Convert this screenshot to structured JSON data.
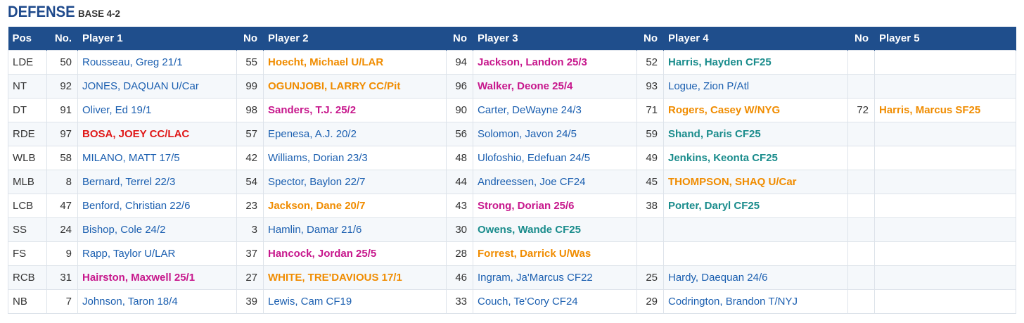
{
  "header": {
    "title": "DEFENSE",
    "subtitle": "BASE 4-2"
  },
  "columns": {
    "pos": "Pos",
    "no1": "No.",
    "player1": "Player 1",
    "no2": "No",
    "player2": "Player 2",
    "no3": "No",
    "player3": "Player 3",
    "no4": "No",
    "player4": "Player 4",
    "no5": "No",
    "player5": "Player 5"
  },
  "colors": {
    "header_bg": "#1f4e8c",
    "title": "#1f4a8c",
    "blue": "#1b5fb0",
    "orange": "#f08c00",
    "magenta": "#c7178c",
    "teal": "#1a8c8c",
    "red": "#e01818"
  },
  "rows": [
    {
      "pos": "LDE",
      "players": [
        {
          "no": "50",
          "name": "Rousseau, Greg 21/1",
          "color": "blue"
        },
        {
          "no": "55",
          "name": "Hoecht, Michael U/LAR",
          "color": "orange"
        },
        {
          "no": "94",
          "name": "Jackson, Landon 25/3",
          "color": "magenta"
        },
        {
          "no": "52",
          "name": "Harris, Hayden CF25",
          "color": "teal"
        },
        {
          "no": "",
          "name": "",
          "color": "blue"
        }
      ]
    },
    {
      "pos": "NT",
      "players": [
        {
          "no": "92",
          "name": "JONES, DAQUAN U/Car",
          "color": "blue"
        },
        {
          "no": "99",
          "name": "OGUNJOBI, LARRY CC/Pit",
          "color": "orange"
        },
        {
          "no": "96",
          "name": "Walker, Deone 25/4",
          "color": "magenta"
        },
        {
          "no": "93",
          "name": "Logue, Zion P/Atl",
          "color": "blue"
        },
        {
          "no": "",
          "name": "",
          "color": "blue"
        }
      ]
    },
    {
      "pos": "DT",
      "players": [
        {
          "no": "91",
          "name": "Oliver, Ed 19/1",
          "color": "blue"
        },
        {
          "no": "98",
          "name": "Sanders, T.J. 25/2",
          "color": "magenta"
        },
        {
          "no": "90",
          "name": "Carter, DeWayne 24/3",
          "color": "blue"
        },
        {
          "no": "71",
          "name": "Rogers, Casey W/NYG",
          "color": "orange"
        },
        {
          "no": "72",
          "name": "Harris, Marcus SF25",
          "color": "orange"
        }
      ]
    },
    {
      "pos": "RDE",
      "players": [
        {
          "no": "97",
          "name": "BOSA, JOEY CC/LAC",
          "color": "red"
        },
        {
          "no": "57",
          "name": "Epenesa, A.J. 20/2",
          "color": "blue"
        },
        {
          "no": "56",
          "name": "Solomon, Javon 24/5",
          "color": "blue"
        },
        {
          "no": "59",
          "name": "Shand, Paris CF25",
          "color": "teal"
        },
        {
          "no": "",
          "name": "",
          "color": "blue"
        }
      ]
    },
    {
      "pos": "WLB",
      "players": [
        {
          "no": "58",
          "name": "MILANO, MATT 17/5",
          "color": "blue"
        },
        {
          "no": "42",
          "name": "Williams, Dorian 23/3",
          "color": "blue"
        },
        {
          "no": "48",
          "name": "Ulofoshio, Edefuan 24/5",
          "color": "blue"
        },
        {
          "no": "49",
          "name": "Jenkins, Keonta CF25",
          "color": "teal"
        },
        {
          "no": "",
          "name": "",
          "color": "blue"
        }
      ]
    },
    {
      "pos": "MLB",
      "players": [
        {
          "no": "8",
          "name": "Bernard, Terrel 22/3",
          "color": "blue"
        },
        {
          "no": "54",
          "name": "Spector, Baylon 22/7",
          "color": "blue"
        },
        {
          "no": "44",
          "name": "Andreessen, Joe CF24",
          "color": "blue"
        },
        {
          "no": "45",
          "name": "THOMPSON, SHAQ U/Car",
          "color": "orange"
        },
        {
          "no": "",
          "name": "",
          "color": "blue"
        }
      ]
    },
    {
      "pos": "LCB",
      "players": [
        {
          "no": "47",
          "name": "Benford, Christian 22/6",
          "color": "blue"
        },
        {
          "no": "23",
          "name": "Jackson, Dane 20/7",
          "color": "orange"
        },
        {
          "no": "43",
          "name": "Strong, Dorian 25/6",
          "color": "magenta"
        },
        {
          "no": "38",
          "name": "Porter, Daryl CF25",
          "color": "teal"
        },
        {
          "no": "",
          "name": "",
          "color": "blue"
        }
      ]
    },
    {
      "pos": "SS",
      "players": [
        {
          "no": "24",
          "name": "Bishop, Cole 24/2",
          "color": "blue"
        },
        {
          "no": "3",
          "name": "Hamlin, Damar 21/6",
          "color": "blue"
        },
        {
          "no": "30",
          "name": "Owens, Wande CF25",
          "color": "teal"
        },
        {
          "no": "",
          "name": "",
          "color": "blue"
        },
        {
          "no": "",
          "name": "",
          "color": "blue"
        }
      ]
    },
    {
      "pos": "FS",
      "players": [
        {
          "no": "9",
          "name": "Rapp, Taylor U/LAR",
          "color": "blue"
        },
        {
          "no": "37",
          "name": "Hancock, Jordan 25/5",
          "color": "magenta"
        },
        {
          "no": "28",
          "name": "Forrest, Darrick U/Was",
          "color": "orange"
        },
        {
          "no": "",
          "name": "",
          "color": "blue"
        },
        {
          "no": "",
          "name": "",
          "color": "blue"
        }
      ]
    },
    {
      "pos": "RCB",
      "players": [
        {
          "no": "31",
          "name": "Hairston, Maxwell 25/1",
          "color": "magenta"
        },
        {
          "no": "27",
          "name": "WHITE, TRE'DAVIOUS 17/1",
          "color": "orange"
        },
        {
          "no": "46",
          "name": "Ingram, Ja'Marcus CF22",
          "color": "blue"
        },
        {
          "no": "25",
          "name": "Hardy, Daequan 24/6",
          "color": "blue"
        },
        {
          "no": "",
          "name": "",
          "color": "blue"
        }
      ]
    },
    {
      "pos": "NB",
      "players": [
        {
          "no": "7",
          "name": "Johnson, Taron 18/4",
          "color": "blue"
        },
        {
          "no": "39",
          "name": "Lewis, Cam CF19",
          "color": "blue"
        },
        {
          "no": "33",
          "name": "Couch, Te'Cory CF24",
          "color": "blue"
        },
        {
          "no": "29",
          "name": "Codrington, Brandon T/NYJ",
          "color": "blue"
        },
        {
          "no": "",
          "name": "",
          "color": "blue"
        }
      ]
    }
  ]
}
